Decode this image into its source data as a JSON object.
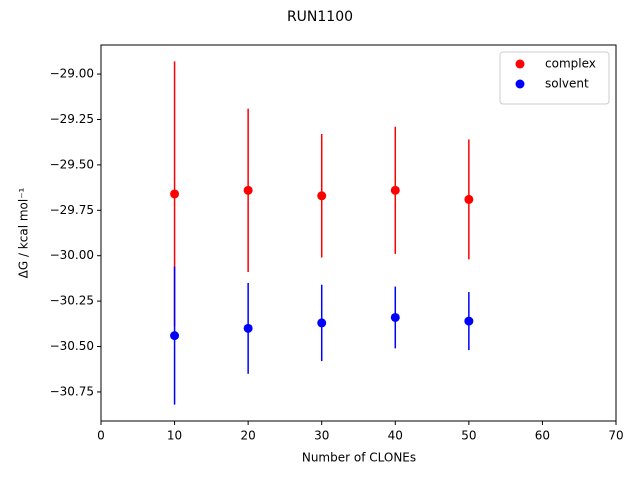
{
  "chart_data": {
    "type": "scatter",
    "title": "RUN1100",
    "xlabel": "Number of CLONEs",
    "ylabel": "ΔG / kcal mol⁻¹",
    "x": [
      10,
      20,
      30,
      40,
      50
    ],
    "series": [
      {
        "name": "complex",
        "color": "#ff0000",
        "values": [
          -29.66,
          -29.64,
          -29.67,
          -29.64,
          -29.69
        ],
        "errors": [
          0.73,
          0.45,
          0.34,
          0.35,
          0.33
        ]
      },
      {
        "name": "solvent",
        "color": "#0000ff",
        "values": [
          -30.44,
          -30.4,
          -30.37,
          -30.34,
          -30.36
        ],
        "errors": [
          0.38,
          0.25,
          0.21,
          0.17,
          0.16
        ]
      }
    ],
    "xlim": [
      0,
      70
    ],
    "xticks": [
      0,
      10,
      20,
      30,
      40,
      50,
      60,
      70
    ],
    "ylim": [
      -30.91,
      -28.84
    ],
    "yticks": [
      {
        "value": -30.75,
        "label": "−30.75"
      },
      {
        "value": -30.5,
        "label": "−30.50"
      },
      {
        "value": -30.25,
        "label": "−30.25"
      },
      {
        "value": -30,
        "label": "−30.00"
      },
      {
        "value": -29.75,
        "label": "−29.75"
      },
      {
        "value": -29.5,
        "label": "−29.50"
      },
      {
        "value": -29.25,
        "label": "−29.25"
      },
      {
        "value": -29,
        "label": "−29.00"
      }
    ],
    "legend": "upper right"
  }
}
